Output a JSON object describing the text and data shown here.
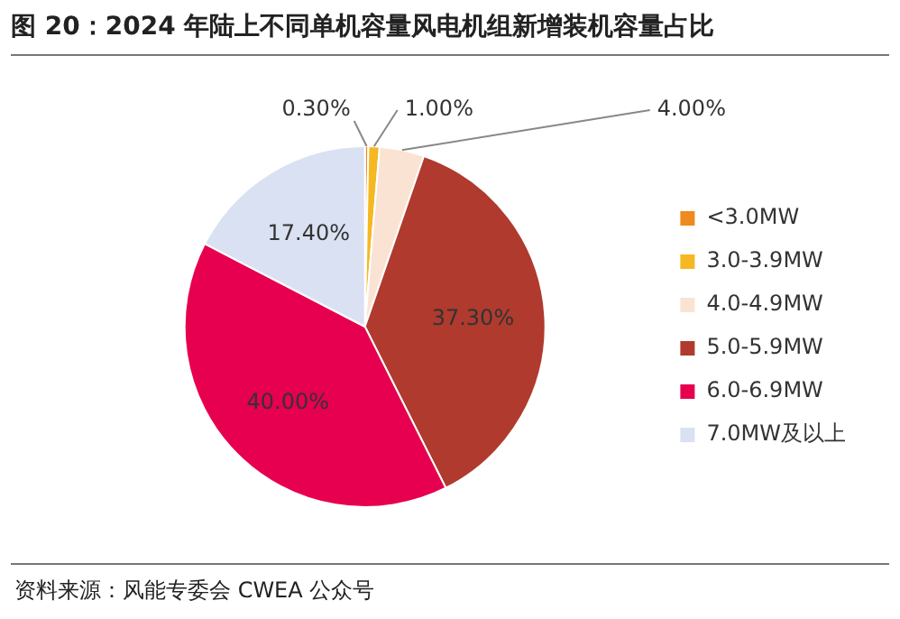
{
  "chart_data": {
    "type": "pie",
    "title": "图 20：2024 年陆上不同单机容量风电机组新增装机容量占比",
    "categories": [
      "<3.0MW",
      "3.0-3.9MW",
      "4.0-4.9MW",
      "5.0-5.9MW",
      "6.0-6.9MW",
      "7.0MW及以上"
    ],
    "values": [
      0.3,
      1.0,
      4.0,
      37.3,
      40.0,
      17.4
    ],
    "value_labels": [
      "0.30%",
      "1.00%",
      "4.00%",
      "37.30%",
      "40.00%",
      "17.40%"
    ],
    "colors": [
      "#ee8a1e",
      "#f5b822",
      "#fbe3d3",
      "#b03a2e",
      "#e6004f",
      "#d9e1f2"
    ],
    "legend": "right",
    "annotations": [
      "资料来源：风能专委会 CWEA 公众号"
    ]
  }
}
